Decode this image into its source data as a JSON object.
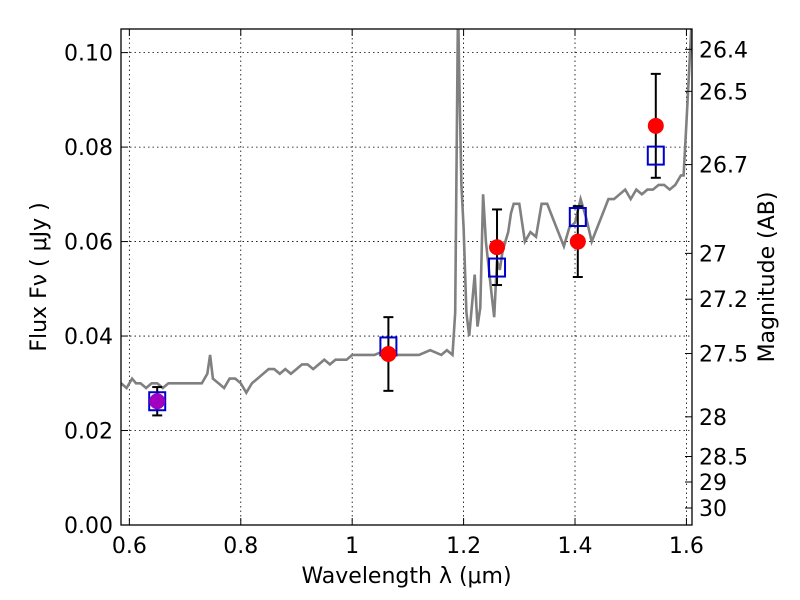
{
  "chart_data": {
    "type": "scatter",
    "xlabel": "Wavelength  λ (μm)",
    "ylabel": "Flux  Fν  ( μJy )",
    "ylabel_right": "Magnitude (AB)",
    "xlim": [
      0.585,
      1.61
    ],
    "ylim": [
      0.0,
      0.105
    ],
    "grid": true,
    "x_ticks": [
      {
        "value": 0.6,
        "label": "0.6"
      },
      {
        "value": 0.8,
        "label": "0.8"
      },
      {
        "value": 1.0,
        "label": "1"
      },
      {
        "value": 1.2,
        "label": "1.2"
      },
      {
        "value": 1.4,
        "label": "1.4"
      },
      {
        "value": 1.6,
        "label": "1.6"
      }
    ],
    "y_ticks": [
      {
        "value": 0.0,
        "label": "0.00"
      },
      {
        "value": 0.02,
        "label": "0.02"
      },
      {
        "value": 0.04,
        "label": "0.04"
      },
      {
        "value": 0.06,
        "label": "0.06"
      },
      {
        "value": 0.08,
        "label": "0.08"
      },
      {
        "value": 0.1,
        "label": "0.10"
      }
    ],
    "right_ticks": [
      {
        "flux": 0.1007,
        "label": "26.4"
      },
      {
        "flux": 0.0918,
        "label": "26.5"
      },
      {
        "flux": 0.0763,
        "label": "26.7"
      },
      {
        "flux": 0.0575,
        "label": "27"
      },
      {
        "flux": 0.0478,
        "label": "27.2"
      },
      {
        "flux": 0.0363,
        "label": "27.5"
      },
      {
        "flux": 0.0229,
        "label": "28"
      },
      {
        "flux": 0.0145,
        "label": "28.5"
      },
      {
        "flux": 0.0091,
        "label": "29"
      },
      {
        "flux": 0.0036,
        "label": "30"
      }
    ],
    "series": [
      {
        "kind": "spectrum",
        "color": "#808080",
        "x": [
          0.585,
          0.595,
          0.605,
          0.612,
          0.62,
          0.63,
          0.64,
          0.65,
          0.66,
          0.67,
          0.68,
          0.69,
          0.7,
          0.71,
          0.72,
          0.73,
          0.74,
          0.745,
          0.75,
          0.76,
          0.77,
          0.78,
          0.79,
          0.8,
          0.81,
          0.82,
          0.83,
          0.84,
          0.85,
          0.86,
          0.87,
          0.88,
          0.89,
          0.9,
          0.91,
          0.92,
          0.93,
          0.94,
          0.95,
          0.96,
          0.97,
          0.98,
          0.99,
          1.0,
          1.02,
          1.04,
          1.06,
          1.08,
          1.1,
          1.12,
          1.14,
          1.16,
          1.17,
          1.18,
          1.185,
          1.19,
          1.193,
          1.196,
          1.2,
          1.205,
          1.21,
          1.22,
          1.225,
          1.23,
          1.235,
          1.24,
          1.25,
          1.255,
          1.26,
          1.265,
          1.27,
          1.28,
          1.285,
          1.29,
          1.3,
          1.31,
          1.32,
          1.33,
          1.34,
          1.35,
          1.36,
          1.37,
          1.38,
          1.39,
          1.4,
          1.41,
          1.42,
          1.43,
          1.44,
          1.45,
          1.46,
          1.47,
          1.48,
          1.49,
          1.5,
          1.51,
          1.52,
          1.53,
          1.54,
          1.55,
          1.56,
          1.57,
          1.58,
          1.59,
          1.595,
          1.6,
          1.61
        ],
        "y": [
          0.03,
          0.029,
          0.031,
          0.03,
          0.03,
          0.029,
          0.03,
          0.03,
          0.029,
          0.03,
          0.03,
          0.03,
          0.03,
          0.03,
          0.03,
          0.03,
          0.032,
          0.036,
          0.031,
          0.03,
          0.029,
          0.031,
          0.031,
          0.03,
          0.028,
          0.03,
          0.031,
          0.032,
          0.033,
          0.033,
          0.032,
          0.033,
          0.032,
          0.033,
          0.034,
          0.034,
          0.033,
          0.034,
          0.035,
          0.034,
          0.035,
          0.035,
          0.035,
          0.036,
          0.036,
          0.036,
          0.037,
          0.036,
          0.036,
          0.036,
          0.037,
          0.036,
          0.037,
          0.036,
          0.045,
          0.11,
          0.09,
          0.072,
          0.063,
          0.045,
          0.04,
          0.053,
          0.042,
          0.046,
          0.07,
          0.06,
          0.049,
          0.044,
          0.056,
          0.054,
          0.058,
          0.062,
          0.066,
          0.068,
          0.068,
          0.06,
          0.062,
          0.061,
          0.068,
          0.068,
          0.065,
          0.062,
          0.059,
          0.063,
          0.064,
          0.069,
          0.065,
          0.06,
          0.063,
          0.066,
          0.069,
          0.069,
          0.07,
          0.071,
          0.069,
          0.071,
          0.07,
          0.071,
          0.071,
          0.072,
          0.072,
          0.071,
          0.072,
          0.074,
          0.074,
          0.085,
          0.108
        ]
      },
      {
        "kind": "model",
        "marker": "open-square",
        "color": "#0000cc",
        "x": [
          0.65,
          1.065,
          1.26,
          1.405,
          1.545
        ],
        "y": [
          0.0262,
          0.0378,
          0.0545,
          0.0652,
          0.0782
        ]
      },
      {
        "kind": "observed",
        "marker": "filled-circle",
        "color": "#ff0000",
        "x": [
          0.65,
          1.065,
          1.26,
          1.405,
          1.545
        ],
        "y": [
          0.0262,
          0.0362,
          0.0588,
          0.06,
          0.0845
        ],
        "yerr": [
          0.003,
          0.0078,
          0.008,
          0.0075,
          0.011
        ]
      }
    ]
  }
}
